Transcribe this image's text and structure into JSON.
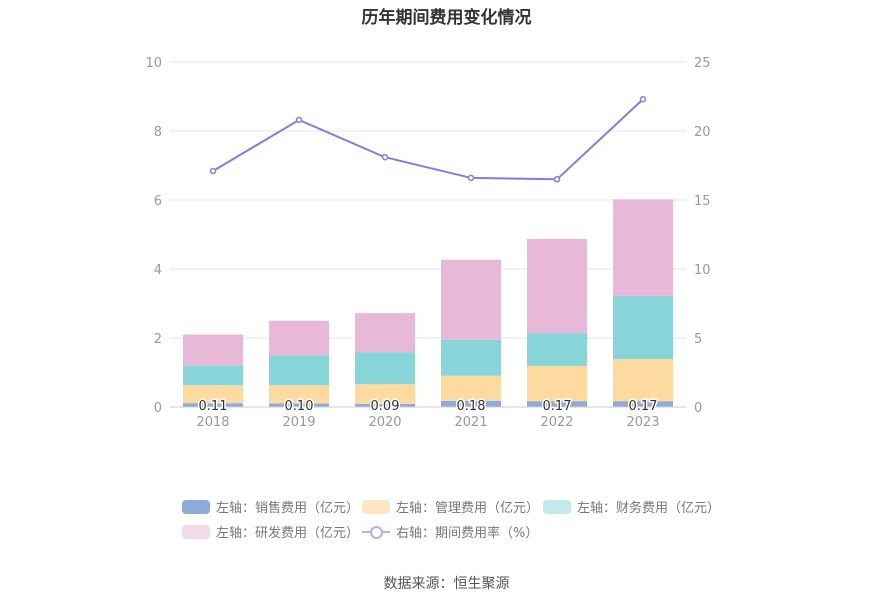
{
  "chart_data": {
    "type": "bar",
    "title": "历年期间费用变化情况",
    "categories": [
      "2018",
      "2019",
      "2020",
      "2021",
      "2022",
      "2023"
    ],
    "left_axis": {
      "ylim": [
        0,
        10
      ],
      "ticks": [
        "0",
        "2",
        "4",
        "6",
        "8",
        "10"
      ]
    },
    "right_axis": {
      "ylim": [
        0,
        25
      ],
      "ticks": [
        "0",
        "5",
        "10",
        "15",
        "20",
        "25"
      ]
    },
    "series": [
      {
        "name": "左轴：销售费用（亿元）",
        "axis": "left",
        "stack": true,
        "color": "#8eaadc",
        "values": [
          0.11,
          0.1,
          0.09,
          0.18,
          0.17,
          0.17
        ],
        "labels": [
          "0.11",
          "0.10",
          "0.09",
          "0.18",
          "0.17",
          "0.17"
        ]
      },
      {
        "name": "左轴：管理费用（亿元）",
        "axis": "left",
        "stack": true,
        "color": "#fed9a0",
        "values": [
          0.52,
          0.53,
          0.57,
          0.73,
          1.02,
          1.22
        ]
      },
      {
        "name": "左轴：财务费用（亿元）",
        "axis": "left",
        "stack": true,
        "color": "#87d4d9",
        "values": [
          0.58,
          0.87,
          0.93,
          1.04,
          0.95,
          1.83
        ]
      },
      {
        "name": "左轴：研发费用（亿元）",
        "axis": "left",
        "stack": true,
        "color": "#e8b8d9",
        "values": [
          0.89,
          1.0,
          1.13,
          2.32,
          2.73,
          2.8
        ]
      },
      {
        "name": "右轴：期间费用率（%）",
        "axis": "right",
        "type": "line",
        "color": "#7b7fe6",
        "values": [
          17.1,
          20.8,
          18.1,
          16.6,
          16.5,
          22.3
        ]
      }
    ],
    "grid": true,
    "legend_position": "bottom"
  },
  "legend": [
    {
      "label": "左轴：销售费用（亿元）",
      "color": "#8eaadc"
    },
    {
      "label": "左轴：管理费用（亿元）",
      "color": "#fde6c0"
    },
    {
      "label": "左轴：财务费用（亿元）",
      "color": "#c4e9eb"
    },
    {
      "label": "左轴：研发费用（亿元）",
      "color": "#f2dbeb"
    },
    {
      "label": "右轴：期间费用率（%）",
      "color": "#b0b3e8"
    }
  ],
  "source": "数据来源：恒生聚源"
}
